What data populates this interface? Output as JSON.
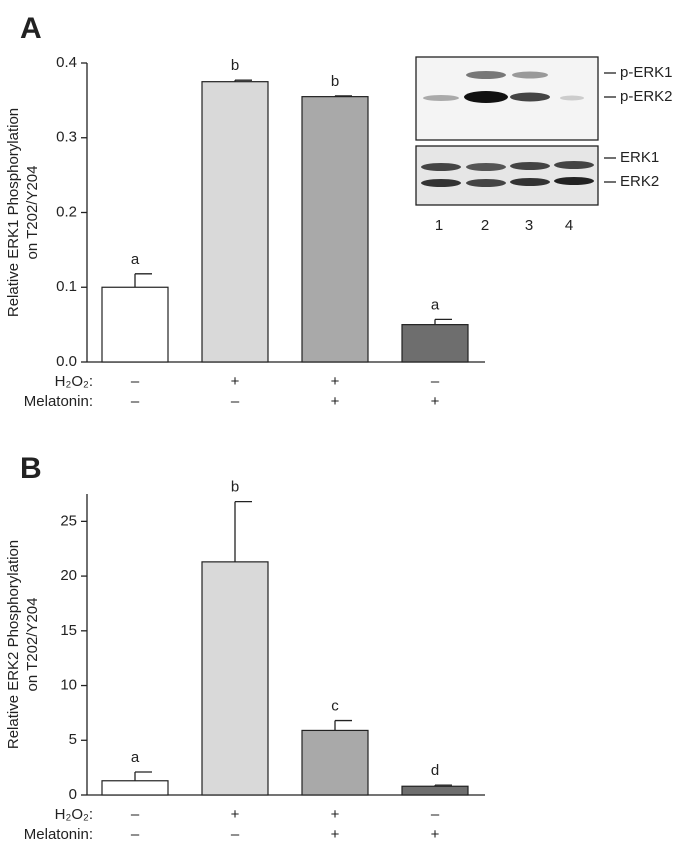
{
  "chart_data": [
    {
      "type": "bar",
      "panel_label": "A",
      "y_label": [
        "Relative ERK1 Phosphorylation",
        "on T202/Y204"
      ],
      "values": [
        0.1,
        0.375,
        0.355,
        0.05
      ],
      "errors": [
        0.018,
        0.002,
        0.001,
        0.007
      ],
      "annotations": [
        "a",
        "b",
        "b",
        "a"
      ],
      "colors": [
        "#ffffff",
        "#d9d9d9",
        "#a9a9a9",
        "#6e6e6e"
      ],
      "conditions": [
        {
          "name": "H₂O₂:",
          "values": [
            "–",
            "+",
            "+",
            "–"
          ]
        },
        {
          "name": "Melatonin:",
          "values": [
            "–",
            "–",
            "+",
            "+"
          ]
        }
      ],
      "ylim": [
        0,
        0.4
      ],
      "yticks": [
        {
          "value": 0,
          "label": "0.0"
        },
        0.1,
        0.2,
        0.3,
        0.4
      ],
      "inset": {
        "band_labels": [
          "p-ERK1",
          "p-ERK2",
          "ERK1",
          "ERK2"
        ],
        "lanes": [
          "1",
          "2",
          "3",
          "4"
        ]
      }
    },
    {
      "type": "bar",
      "panel_label": "B",
      "y_label": [
        "Relative ERK2 Phosphorylation",
        "on T202/Y204"
      ],
      "values": [
        1.3,
        21.3,
        5.9,
        0.8
      ],
      "errors": [
        0.8,
        5.5,
        0.9,
        0.1
      ],
      "annotations": [
        "a",
        "b",
        "c",
        "d"
      ],
      "colors": [
        "#ffffff",
        "#d9d9d9",
        "#a9a9a9",
        "#6e6e6e"
      ],
      "conditions": [
        {
          "name": "H₂O₂:",
          "values": [
            "–",
            "+",
            "+",
            "–"
          ]
        },
        {
          "name": "Melatonin:",
          "values": [
            "–",
            "–",
            "+",
            "+"
          ]
        }
      ],
      "ylim": [
        0,
        27.5
      ],
      "yticks": [
        0,
        5,
        10,
        15,
        20,
        25
      ]
    }
  ]
}
